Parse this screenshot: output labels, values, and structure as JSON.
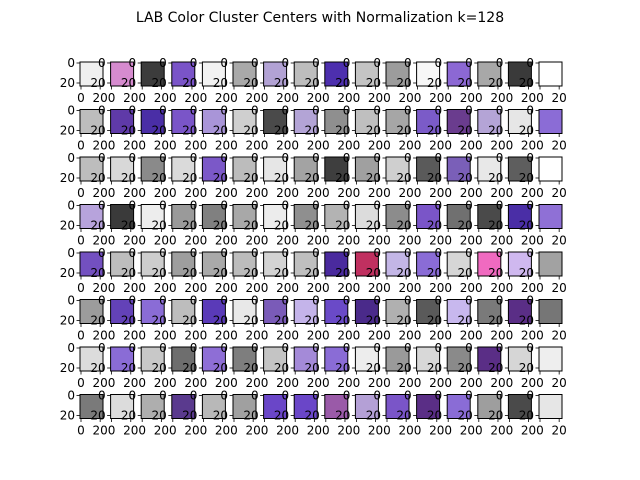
{
  "chart_data": {
    "type": "image-grid",
    "title": "LAB Color Cluster Centers with Normalization k=128",
    "rows": 8,
    "cols": 16,
    "patch_size": 24,
    "ytick_labels": [
      "0",
      "20"
    ],
    "xtick_labels": [
      "0",
      "20"
    ],
    "tiles": [
      [
        "#efefef",
        "#d68bcf",
        "#3c3c3c",
        "#7a54c8",
        "#f2f2f2",
        "#a9a9a9",
        "#b2a2d4",
        "#bdbdbd",
        "#4d2fae",
        "#c4c4c4",
        "#9c9c9c",
        "#f7f7f7",
        "#8c68d4",
        "#a8a8a8",
        "#3a3a3a",
        "#ffffff"
      ],
      [
        "#bdbdbd",
        "#5f3aa8",
        "#4a2ea6",
        "#7a55c8",
        "#a995d8",
        "#cfcfcf",
        "#4a4a4a",
        "#b3a4d6",
        "#8f8f8f",
        "#bfbfbf",
        "#a6a6a6",
        "#7b5bc8",
        "#6a3c8e",
        "#b4a4d6",
        "#e6e6e6",
        "#8b6cd6"
      ],
      [
        "#bdbdbd",
        "#d8d8d8",
        "#8a8a8a",
        "#dadada",
        "#7b58c8",
        "#bcbcbc",
        "#e6e6e6",
        "#a3a3a3",
        "#3e3e3e",
        "#a0a0a0",
        "#cfcfcf",
        "#5a5a5a",
        "#7a5fb8",
        "#e8e8e8",
        "#5e5e5e",
        "#ffffff"
      ],
      [
        "#b7a3dc",
        "#3a3a3a",
        "#ededed",
        "#9a9a9a",
        "#808080",
        "#a8a8a8",
        "#ececec",
        "#8f8f8f",
        "#b3b3b3",
        "#dcdcdc",
        "#8c8c8c",
        "#7a55c8",
        "#707070",
        "#4a4a4a",
        "#4a2ea6",
        "#8f70d6"
      ],
      [
        "#7350c0",
        "#bdbdbd",
        "#cdcdcd",
        "#9e9e9e",
        "#a9a9a9",
        "#bcbcbc",
        "#d3d3d3",
        "#bfbfbf",
        "#4a2a9e",
        "#c03060",
        "#c3b6e6",
        "#8a6cd6",
        "#d6d6d6",
        "#f06ac0",
        "#cfb8ef",
        "#a2a2a2"
      ],
      [
        "#9c9c9c",
        "#6342b8",
        "#8a6cd6",
        "#bdbdbd",
        "#5a3ab8",
        "#e8e8e8",
        "#7a5bb8",
        "#c4b4ea",
        "#6a4ac8",
        "#4a2a8a",
        "#b0b0b0",
        "#5a5a5a",
        "#c8b8ee",
        "#7a7a7a",
        "#5a2e86",
        "#767676"
      ],
      [
        "#dcdcdc",
        "#8a6cd6",
        "#c8c8c8",
        "#6e6e6e",
        "#8e6ed6",
        "#7e7e7e",
        "#c4c4c4",
        "#a48ad8",
        "#8a6cd6",
        "#ededed",
        "#9a9a9a",
        "#d8d8d8",
        "#8a8a8a",
        "#5a2e86",
        "#d6d6d6",
        "#eeeeee"
      ],
      [
        "#7a7a7a",
        "#dcdcdc",
        "#aeaeae",
        "#5a3a8e",
        "#b8b8b8",
        "#a0a0a0",
        "#6a46c8",
        "#6a46c8",
        "#9a5aa8",
        "#b4a0d6",
        "#7a55c8",
        "#5a2e86",
        "#8a6cd6",
        "#9e9e9e",
        "#4a4a4a",
        "#e6e6e6"
      ]
    ]
  }
}
